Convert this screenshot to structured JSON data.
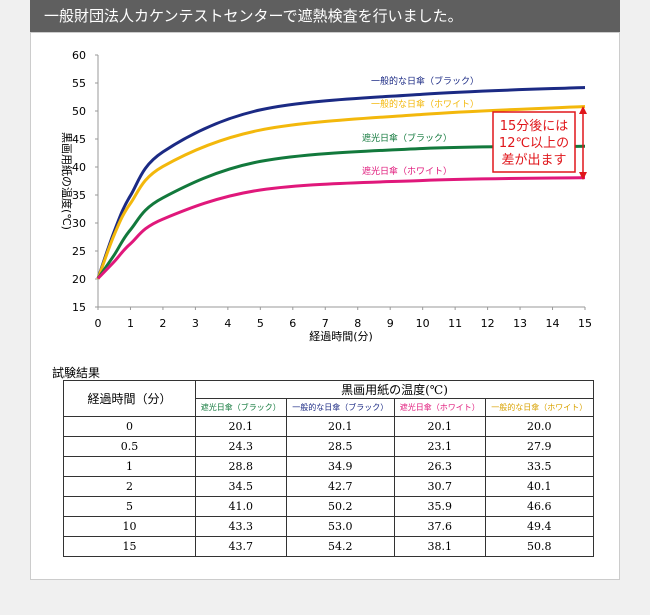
{
  "header": {
    "title": "一般財団法人カケンテストセンターで遮熱検査を行いました。"
  },
  "chart_data": {
    "type": "line",
    "x_label": "経過時間(分)",
    "y_label": "黒画用紙の温度(℃)",
    "x": [
      0,
      0.5,
      1,
      2,
      5,
      10,
      15
    ],
    "series": [
      {
        "name": "一般的な日傘（ブラック）",
        "color": "#1b2a84",
        "values": [
          20.1,
          28.5,
          34.9,
          42.7,
          50.2,
          53.0,
          54.2
        ]
      },
      {
        "name": "一般的な日傘（ホワイト）",
        "color": "#f3b80c",
        "values": [
          20.0,
          27.9,
          33.5,
          40.1,
          46.6,
          49.4,
          50.8
        ]
      },
      {
        "name": "遮光日傘（ブラック）",
        "color": "#12793c",
        "values": [
          20.1,
          24.3,
          28.8,
          34.5,
          41.0,
          43.3,
          43.7
        ]
      },
      {
        "name": "遮光日傘（ホワイト）",
        "color": "#e0187b",
        "values": [
          20.1,
          23.1,
          26.3,
          30.7,
          35.9,
          37.6,
          38.1
        ]
      }
    ],
    "xlim": [
      0,
      15
    ],
    "xticks": [
      0,
      1,
      2,
      3,
      4,
      5,
      6,
      7,
      8,
      9,
      10,
      11,
      12,
      13,
      14,
      15
    ],
    "ylim": [
      15,
      60
    ],
    "yticks": [
      15,
      20,
      25,
      30,
      35,
      40,
      45,
      50,
      55,
      60
    ],
    "annotation": [
      "15分後には",
      "12℃以上の",
      "差が出ます"
    ],
    "annotation_color": "#e0161b"
  },
  "table": {
    "title": "試験結果",
    "row_header": "経過時間（分）",
    "group_header": "黒画用紙の温度(℃)",
    "columns": [
      {
        "label": "遮光日傘（ブラック）",
        "color": "#12793c"
      },
      {
        "label": "一般的な日傘（ブラック）",
        "color": "#1b2a84"
      },
      {
        "label": "遮光日傘（ホワイト）",
        "color": "#e0187b"
      },
      {
        "label": "一般的な日傘（ホワイト）",
        "color": "#d9a200"
      }
    ],
    "rows": [
      [
        "0",
        "20.1",
        "20.1",
        "20.1",
        "20.0"
      ],
      [
        "0.5",
        "24.3",
        "28.5",
        "23.1",
        "27.9"
      ],
      [
        "1",
        "28.8",
        "34.9",
        "26.3",
        "33.5"
      ],
      [
        "2",
        "34.5",
        "42.7",
        "30.7",
        "40.1"
      ],
      [
        "5",
        "41.0",
        "50.2",
        "35.9",
        "46.6"
      ],
      [
        "10",
        "43.3",
        "53.0",
        "37.6",
        "49.4"
      ],
      [
        "15",
        "43.7",
        "54.2",
        "38.1",
        "50.8"
      ]
    ]
  }
}
